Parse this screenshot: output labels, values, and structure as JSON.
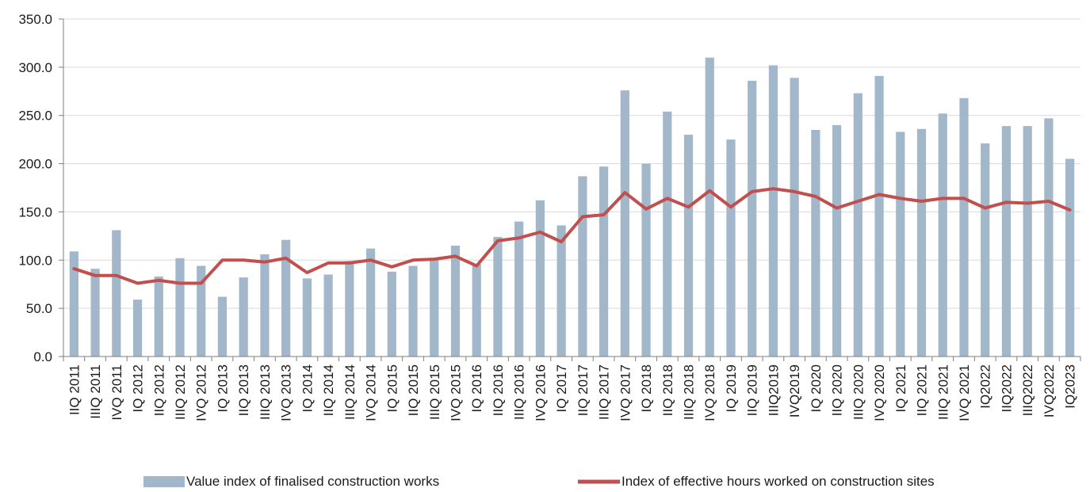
{
  "chart_data": {
    "type": "bar",
    "categories": [
      "IIQ 2011",
      "IIIQ 2011",
      "IVQ 2011",
      "IQ 2012",
      "IIQ 2012",
      "IIIQ 2012",
      "IVQ 2012",
      "IQ 2013",
      "IIQ 2013",
      "IIIQ 2013",
      "IVQ 2013",
      "IQ 2014",
      "IIQ 2014",
      "IIIQ 2014",
      "IVQ 2014",
      "IQ 2015",
      "IIQ 2015",
      "IIIQ 2015",
      "IVQ 2015",
      "IQ 2016",
      "IIQ 2016",
      "IIIQ 2016",
      "IVQ 2016",
      "IQ 2017",
      "IIQ 2017",
      "IIIQ 2017",
      "IVQ 2017",
      "IQ 2018",
      "IIQ 2018",
      "IIIQ 2018",
      "IVQ 2018",
      "IQ 2019",
      "IIQ 2019",
      "IIIQ2019",
      "IVQ2019",
      "IQ 2020",
      "IIQ 2020",
      "IIIQ 2020",
      "IVQ 2020",
      "IQ 2021",
      "IIQ 2021",
      "IIIQ 2021",
      "IVQ 2021",
      "IQ2022",
      "IIQ2022",
      "IIIQ2022",
      "IVQ2022",
      "IQ2023"
    ],
    "series": [
      {
        "name": "Value index of finalised construction works",
        "kind": "bar",
        "color": "#a3b7cb",
        "values": [
          109,
          91,
          131,
          59,
          83,
          102,
          94,
          62,
          82,
          106,
          121,
          81,
          85,
          99,
          112,
          88,
          94,
          101,
          115,
          96,
          124,
          140,
          162,
          136,
          187,
          197,
          276,
          200,
          254,
          230,
          310,
          225,
          286,
          302,
          289,
          235,
          240,
          273,
          291,
          233,
          236,
          252,
          268,
          221,
          239,
          239,
          247,
          205
        ]
      },
      {
        "name": "Index of effective hours worked on construction sites",
        "kind": "line",
        "color": "#c0504d",
        "values": [
          91,
          84,
          84,
          76,
          79,
          76,
          76,
          100,
          100,
          98,
          102,
          87,
          97,
          97,
          100,
          93,
          100,
          101,
          104,
          94,
          120,
          123,
          129,
          119,
          145,
          147,
          170,
          153,
          164,
          155,
          172,
          155,
          171,
          174,
          171,
          166,
          154,
          161,
          168,
          164,
          161,
          164,
          164,
          154,
          160,
          159,
          161,
          152
        ]
      }
    ],
    "ylim": [
      0,
      350
    ],
    "yticks": [
      "0.0",
      "50.0",
      "100.0",
      "150.0",
      "200.0",
      "250.0",
      "300.0",
      "350.0"
    ],
    "grid": true,
    "legend_position": "bottom"
  }
}
